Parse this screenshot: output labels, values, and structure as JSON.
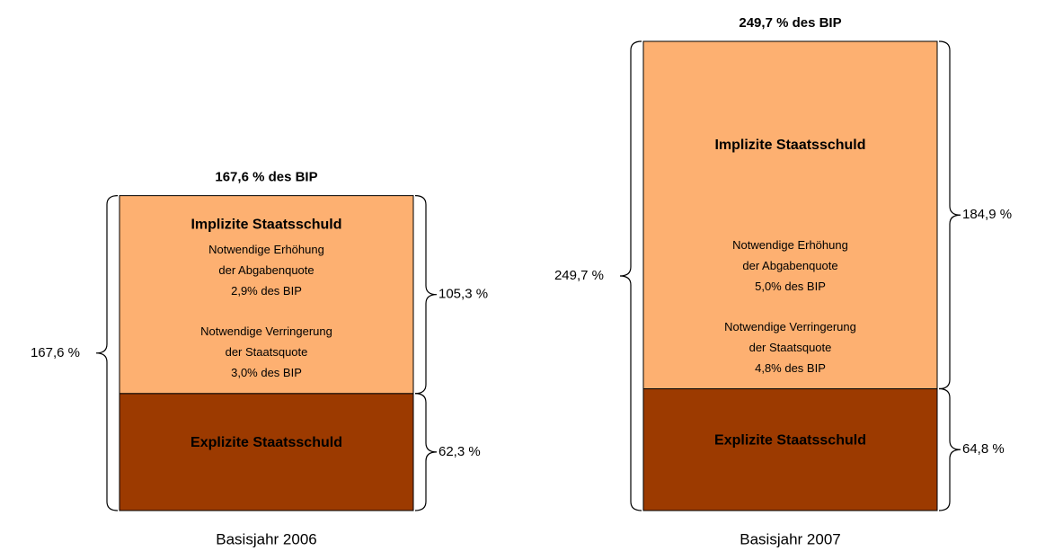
{
  "chart_data": {
    "type": "bar",
    "stacked": true,
    "categories": [
      "Basisjahr 2006",
      "Basisjahr 2007"
    ],
    "series": [
      {
        "name": "Explizite Staatsschuld",
        "color": "#9c3a00",
        "values": [
          62.3,
          64.8
        ],
        "value_labels": [
          "62,3 %",
          "64,8 %"
        ]
      },
      {
        "name": "Implizite Staatsschuld",
        "color": "#fdb071",
        "values": [
          105.3,
          184.9
        ],
        "value_labels": [
          "105,3 %",
          "184,9 %"
        ]
      }
    ],
    "totals": [
      167.6,
      249.7
    ],
    "total_labels": [
      "167,6 %",
      "249,7 %"
    ],
    "total_titles": [
      "167,6 % des BIP",
      "249,7 % des BIP"
    ],
    "notes": [
      [
        [
          "Notwendige Erhöhung",
          "der Abgabenquote",
          "2,9% des BIP"
        ],
        [
          "Notwendige Verringerung",
          "der Staatsquote",
          "3,0% des BIP"
        ]
      ],
      [
        [
          "Notwendige Erhöhung",
          "der Abgabenquote",
          "5,0% des BIP"
        ],
        [
          "Notwendige Verringerung",
          "der Staatsquote",
          "4,8% des BIP"
        ]
      ]
    ]
  }
}
